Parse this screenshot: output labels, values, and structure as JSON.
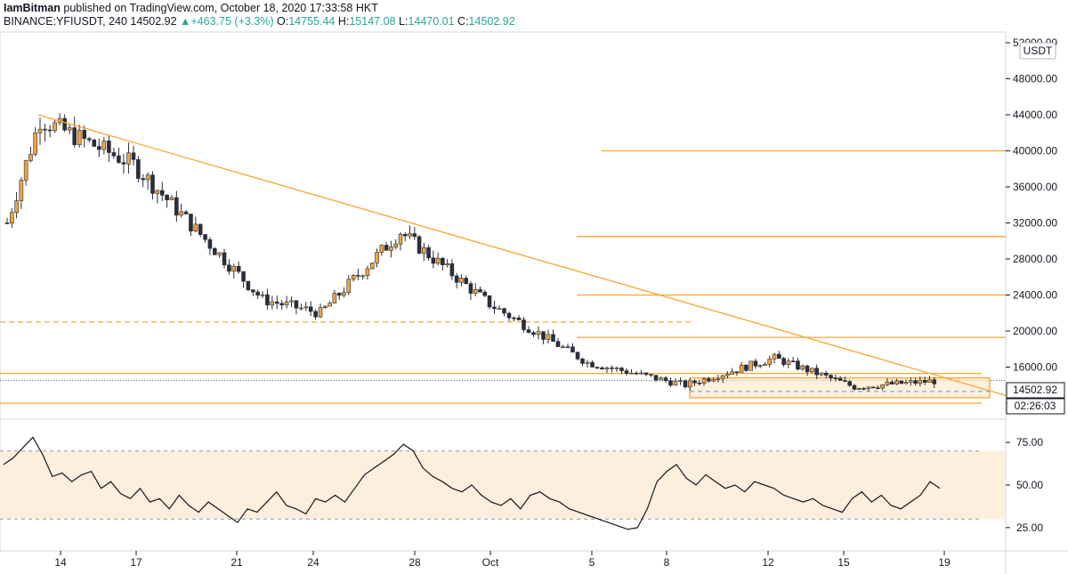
{
  "header": {
    "author": "IamBitman",
    "published": "published on TradingView.com, October 18, 2020 17:33:58 HKT",
    "symbol": "BINANCE:YFIUSDT, 240",
    "last": "14502.92",
    "arrow": "▲",
    "change": "+463.75 (+3.3%)",
    "open_label": "O:",
    "open": "14755.44",
    "high_label": "H:",
    "high": "15147.08",
    "low_label": "L:",
    "low": "14470.01",
    "close_label": "C:",
    "close": "14502.92"
  },
  "price_axis": {
    "currency": "USDT",
    "ticks": [
      "52000.00",
      "48000.00",
      "44000.00",
      "40000.00",
      "36000.00",
      "32000.00",
      "28000.00",
      "24000.00",
      "20000.00",
      "16000.00",
      "12000.00"
    ],
    "last_price_label": "14502.92",
    "countdown_label": "02:26:03"
  },
  "rsi_axis": {
    "ticks": [
      "75.00",
      "50.00",
      "25.00"
    ]
  },
  "time_axis": {
    "ticks": [
      "14",
      "17",
      "21",
      "24",
      "28",
      "Oct",
      "5",
      "8",
      "12",
      "15",
      "19"
    ]
  },
  "colors": {
    "up": "#f0a443",
    "down": "#2a2e39",
    "line": "#f7a535",
    "rsi_band": "#fdeedd",
    "rsi_line": "#131722",
    "grid": "#e0e3eb"
  },
  "chart_data": {
    "type": "candlestick",
    "symbol": "BINANCE:YFIUSDT",
    "timeframe": "240",
    "x": [
      "2020-09-12",
      "2020-09-14",
      "2020-09-17",
      "2020-09-21",
      "2020-09-24",
      "2020-09-28",
      "2020-10-01",
      "2020-10-05",
      "2020-10-08",
      "2020-10-12",
      "2020-10-15",
      "2020-10-18"
    ],
    "close": [
      32000,
      43500,
      38500,
      23500,
      22000,
      31000,
      23000,
      16500,
      14000,
      17000,
      13800,
      14502.92
    ],
    "ylim": [
      10000,
      53000
    ],
    "trendline": {
      "from": [
        "2020-09-13",
        44000
      ],
      "to": [
        "2020-10-19",
        12800
      ]
    },
    "horizontal_levels": [
      40000,
      30500,
      24000,
      19300,
      15300,
      12000
    ],
    "dashed_levels": [
      21000,
      13300
    ],
    "rsi": {
      "period": "14",
      "levels": [
        70,
        30
      ],
      "ylim": [
        15,
        85
      ],
      "values": [
        62,
        66,
        72,
        78,
        68,
        55,
        57,
        52,
        56,
        58,
        48,
        52,
        45,
        42,
        48,
        40,
        42,
        36,
        44,
        38,
        34,
        40,
        36,
        32,
        28,
        36,
        34,
        40,
        46,
        38,
        36,
        33,
        42,
        40,
        44,
        40,
        48,
        56,
        60,
        64,
        68,
        74,
        70,
        60,
        55,
        52,
        48,
        46,
        50,
        44,
        40,
        38,
        42,
        36,
        44,
        46,
        42,
        40,
        36,
        34,
        32,
        30,
        28,
        26,
        24,
        25,
        36,
        52,
        58,
        62,
        54,
        50,
        56,
        52,
        48,
        50,
        46,
        52,
        50,
        48,
        44,
        42,
        40,
        42,
        38,
        36,
        34,
        42,
        46,
        40,
        44,
        38,
        36,
        40,
        44,
        52,
        48
      ]
    }
  }
}
